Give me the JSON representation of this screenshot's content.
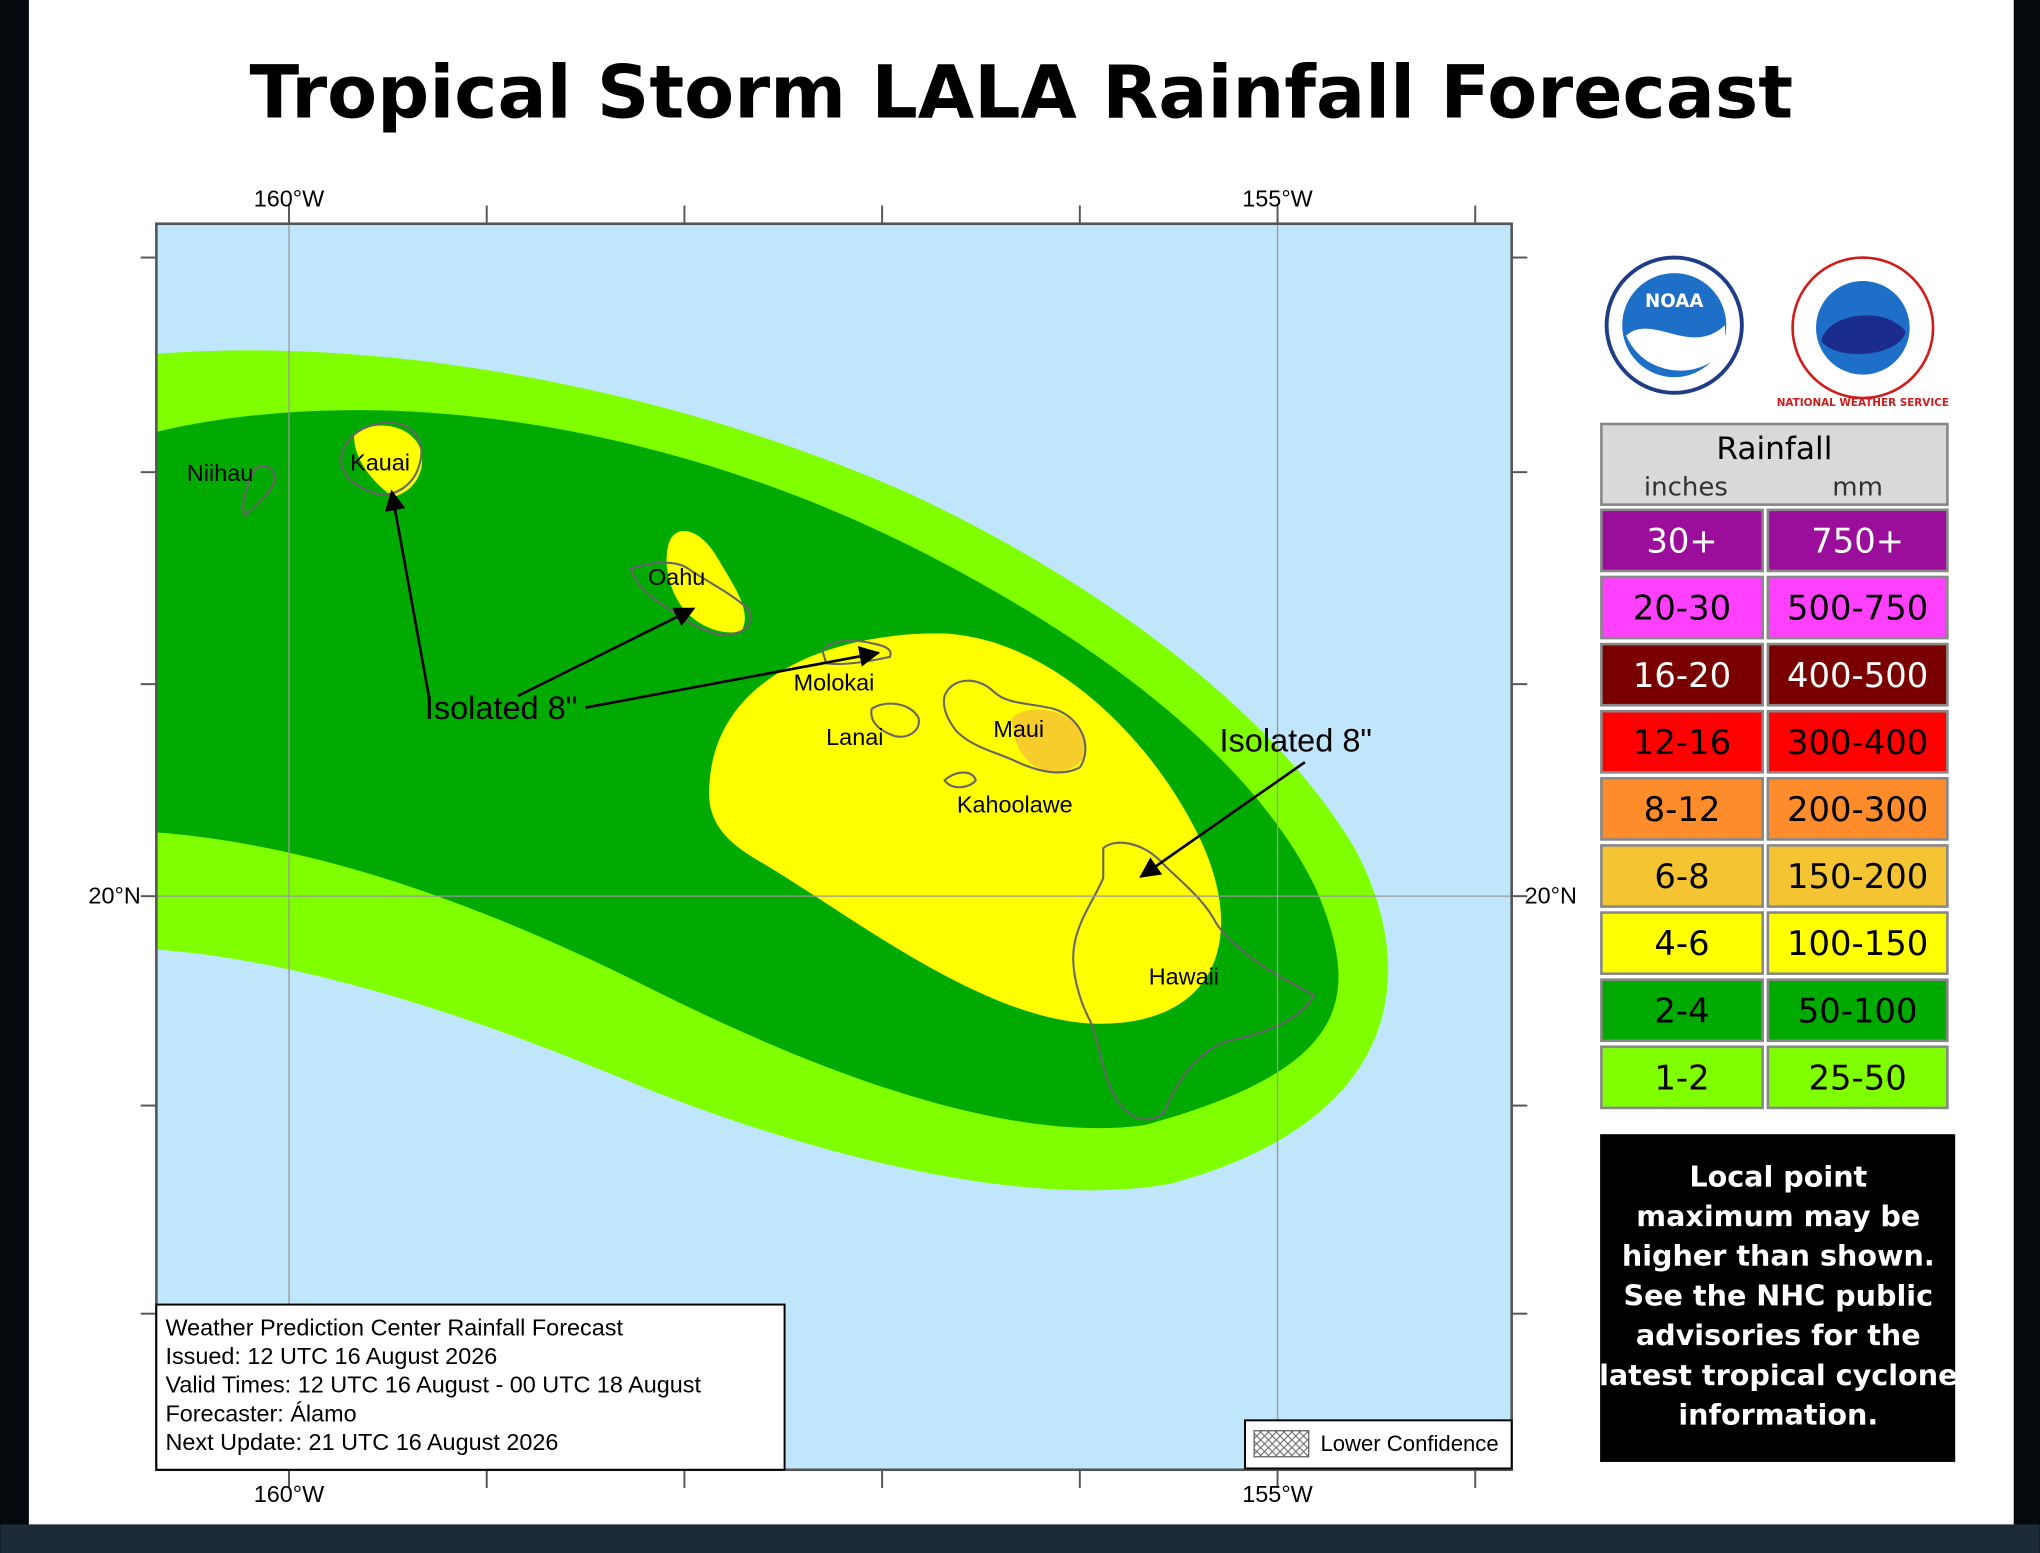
{
  "title": "Tropical Storm LALA Rainfall Forecast",
  "map": {
    "lon_labels_top": [
      "160°W",
      "155°W"
    ],
    "lon_labels_bottom": [
      "160°W",
      "155°W"
    ],
    "lat_labels_left": [
      "20°N"
    ],
    "lat_labels_right": [
      "20°N"
    ],
    "islands": [
      "Niihau",
      "Kauai",
      "Oahu",
      "Molokai",
      "Lanai",
      "Maui",
      "Kahoolawe",
      "Hawaii"
    ],
    "annotations": [
      "Isolated 8\"",
      "Isolated 8\""
    ]
  },
  "logos": {
    "noaa": "NOAA",
    "nws": "NATIONAL WEATHER SERVICE"
  },
  "legend": {
    "title": "Rainfall",
    "units": [
      "inches",
      "mm"
    ],
    "rows": [
      {
        "inches": "30+",
        "mm": "750+",
        "color": "#9b0d9b",
        "text_color": "#ffffff"
      },
      {
        "inches": "20-30",
        "mm": "500-750",
        "color": "#ff40ff",
        "text_color": "#000000"
      },
      {
        "inches": "16-20",
        "mm": "400-500",
        "color": "#7a0000",
        "text_color": "#ffffff"
      },
      {
        "inches": "12-16",
        "mm": "300-400",
        "color": "#ff0000",
        "text_color": "#000000"
      },
      {
        "inches": "8-12",
        "mm": "200-300",
        "color": "#ff8c2a",
        "text_color": "#000000"
      },
      {
        "inches": "6-8",
        "mm": "150-200",
        "color": "#f5c433",
        "text_color": "#000000"
      },
      {
        "inches": "4-6",
        "mm": "100-150",
        "color": "#ffff00",
        "text_color": "#000000"
      },
      {
        "inches": "2-4",
        "mm": "50-100",
        "color": "#00aa00",
        "text_color": "#000000"
      },
      {
        "inches": "1-2",
        "mm": "25-50",
        "color": "#7fff00",
        "text_color": "#000000"
      }
    ]
  },
  "info": [
    "Weather Prediction Center Rainfall Forecast",
    "Issued: 12 UTC 16 August 2026",
    "Valid Times: 12 UTC 16 August - 00 UTC 18 August",
    "Forecaster: Álamo",
    "Next Update: 21 UTC 16 August 2026"
  ],
  "lower_confidence": "Lower Confidence",
  "note": [
    "Local point",
    "maximum may be",
    "higher than shown.",
    "See the NHC public",
    "advisories for the",
    "latest tropical cyclone",
    "information."
  ]
}
